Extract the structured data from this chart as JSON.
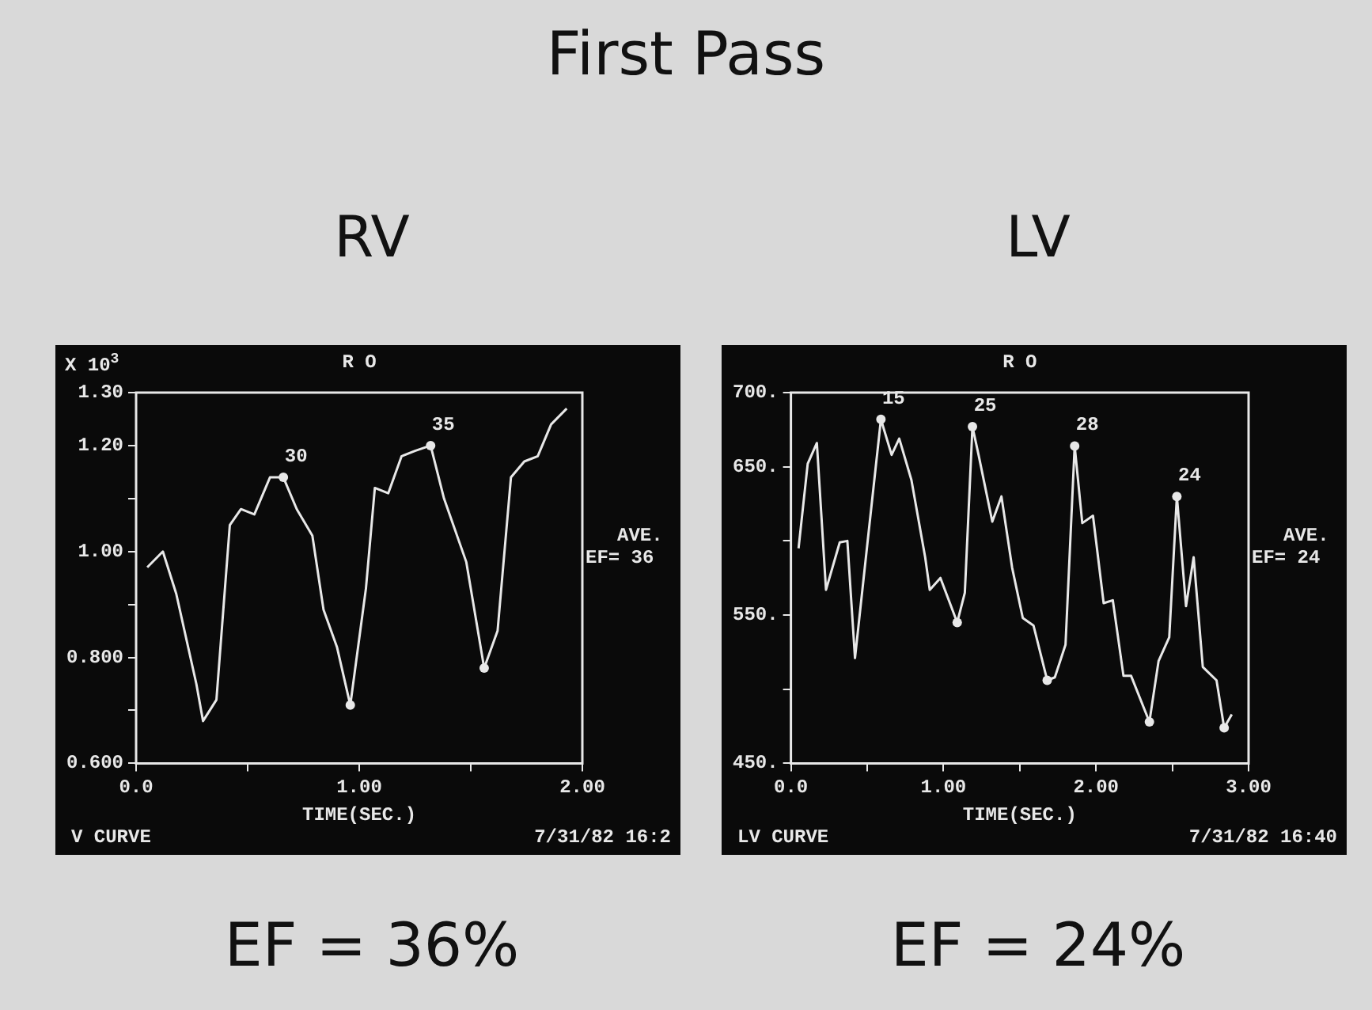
{
  "chart_data": [
    {
      "type": "line",
      "title": "RV",
      "xlabel": "TIME(SEC.)",
      "ylabel": "X 10$^{3}$",
      "legend": false,
      "grid": false,
      "xlim": [
        0,
        2
      ],
      "xticks": [
        {
          "value": 0,
          "label": "0.0"
        },
        {
          "value": 0.5,
          "label": null
        },
        {
          "value": 1,
          "label": "1.00"
        },
        {
          "value": 1.5,
          "label": null
        },
        {
          "value": 2,
          "label": "2.00"
        }
      ],
      "ylim": [
        0.6,
        1.3
      ],
      "yticks": [
        {
          "value": 0.6,
          "label": "0.600"
        },
        {
          "value": 0.7,
          "label": null
        },
        {
          "value": 0.8,
          "label": "0.800"
        },
        {
          "value": 0.9,
          "label": null
        },
        {
          "value": 1,
          "label": "1.00"
        },
        {
          "value": 1.1,
          "label": null
        },
        {
          "value": 1.2,
          "label": "1.20"
        },
        {
          "value": 1.3,
          "label": "1.30"
        }
      ],
      "series": [
        {
          "color": "#e8e8e8",
          "marker": "none",
          "x": [
            0.05,
            0.12,
            0.18,
            0.27,
            0.3,
            0.36,
            0.42,
            0.47,
            0.53,
            0.6,
            0.66,
            0.72,
            0.79,
            0.84,
            0.9,
            0.96,
            1.03,
            1.07,
            1.13,
            1.19,
            1.25,
            1.32,
            1.38,
            1.48,
            1.56,
            1.62,
            1.68,
            1.74,
            1.8,
            1.86,
            1.93
          ],
          "values": [
            0.97,
            1.0,
            0.92,
            0.75,
            0.68,
            0.72,
            1.05,
            1.08,
            1.07,
            1.14,
            1.14,
            1.08,
            1.03,
            0.89,
            0.82,
            0.71,
            0.93,
            1.12,
            1.11,
            1.18,
            1.19,
            1.2,
            1.1,
            0.98,
            0.78,
            0.85,
            1.14,
            1.17,
            1.18,
            1.24,
            1.27
          ]
        },
        {
          "type": "scatter",
          "color": "#e8e8e8",
          "marker": "circle",
          "x": [
            0.66,
            0.96,
            1.32,
            1.56
          ],
          "values": [
            1.14,
            0.71,
            1.2,
            0.78
          ]
        }
      ],
      "annotations": [
        "First Pass",
        "R O",
        "AVE.",
        "EF= 36",
        "V CURVE",
        "7/31/82 16:2",
        "EF = 36%",
        {
          "text": "30",
          "x": 0.66,
          "y": 1.14
        },
        {
          "text": "35",
          "x": 1.32,
          "y": 1.2
        }
      ]
    },
    {
      "type": "line",
      "title": "LV",
      "xlabel": "TIME(SEC.)",
      "legend": false,
      "grid": false,
      "xlim": [
        0,
        3
      ],
      "xticks": [
        {
          "value": 0,
          "label": "0.0"
        },
        {
          "value": 0.5,
          "label": null
        },
        {
          "value": 1,
          "label": "1.00"
        },
        {
          "value": 1.5,
          "label": null
        },
        {
          "value": 2,
          "label": "2.00"
        },
        {
          "value": 2.5,
          "label": null
        },
        {
          "value": 3,
          "label": "3.00"
        }
      ],
      "ylim": [
        450,
        700
      ],
      "yticks": [
        {
          "value": 450,
          "label": "450."
        },
        {
          "value": 500,
          "label": null
        },
        {
          "value": 550,
          "label": "550."
        },
        {
          "value": 600,
          "label": null
        },
        {
          "value": 650,
          "label": "650."
        },
        {
          "value": 700,
          "label": "700."
        }
      ],
      "series": [
        {
          "color": "#e8e8e8",
          "marker": "none",
          "x": [
            0.05,
            0.11,
            0.17,
            0.23,
            0.32,
            0.37,
            0.42,
            0.5,
            0.59,
            0.66,
            0.71,
            0.79,
            0.88,
            0.91,
            0.98,
            1.09,
            1.14,
            1.19,
            1.23,
            1.32,
            1.38,
            1.45,
            1.52,
            1.59,
            1.68,
            1.73,
            1.8,
            1.86,
            1.91,
            1.98,
            2.05,
            2.11,
            2.18,
            2.23,
            2.35,
            2.41,
            2.48,
            2.53,
            2.59,
            2.64,
            2.7,
            2.79,
            2.84,
            2.89
          ],
          "values": [
            595,
            652,
            666,
            567,
            599,
            600,
            521,
            597,
            682,
            658,
            669,
            641,
            589,
            567,
            575,
            545,
            565,
            677,
            658,
            613,
            630,
            582,
            548,
            543,
            506,
            508,
            530,
            664,
            612,
            617,
            558,
            560,
            509,
            509,
            478,
            519,
            535,
            630,
            556,
            589,
            515,
            506,
            474,
            483
          ]
        },
        {
          "type": "scatter",
          "color": "#e8e8e8",
          "marker": "circle",
          "x": [
            0.59,
            1.09,
            1.19,
            1.68,
            1.86,
            2.35,
            2.53,
            2.84
          ],
          "values": [
            682,
            545,
            677,
            506,
            664,
            478,
            630,
            474
          ]
        }
      ],
      "annotations": [
        "R O",
        "AVE.",
        "EF= 24",
        "LV CURVE",
        "7/31/82 16:40",
        "EF = 24%",
        {
          "text": "15",
          "x": 0.59,
          "y": 682
        },
        {
          "text": "25",
          "x": 1.19,
          "y": 677
        },
        {
          "text": "28",
          "x": 1.86,
          "y": 664
        },
        {
          "text": "24",
          "x": 2.53,
          "y": 630
        }
      ]
    }
  ]
}
